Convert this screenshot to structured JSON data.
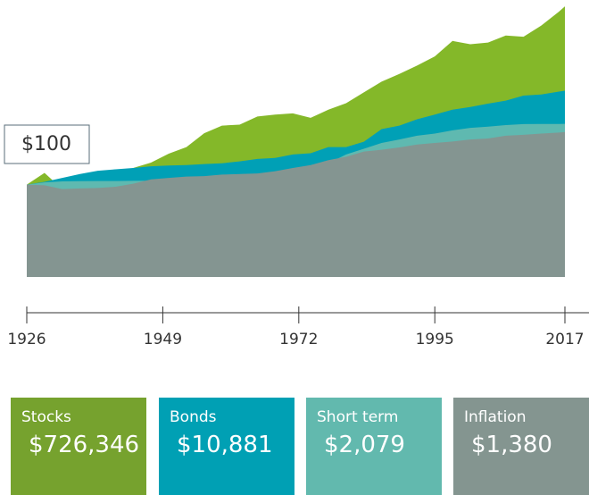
{
  "chart_data": {
    "type": "area",
    "annotation": "$100",
    "log_scale": true,
    "xlim": [
      1926,
      2017
    ],
    "xticks": [
      1926,
      1949,
      1972,
      1995,
      2017
    ],
    "ylim": [
      1,
      1000000
    ],
    "x": [
      1926,
      1929,
      1932,
      1935,
      1938,
      1941,
      1944,
      1947,
      1950,
      1953,
      1956,
      1959,
      1962,
      1965,
      1968,
      1971,
      1974,
      1977,
      1980,
      1983,
      1986,
      1989,
      1992,
      1995,
      1998,
      2001,
      2004,
      2007,
      2010,
      2013,
      2016,
      2017
    ],
    "series": [
      {
        "name": "Stocks",
        "color": "#84b829",
        "legend_color": "#76a22e",
        "values": [
          100,
          180,
          80,
          150,
          170,
          140,
          230,
          300,
          470,
          650,
          1300,
          1900,
          2000,
          3000,
          3300,
          3500,
          2800,
          4200,
          5800,
          10000,
          17000,
          25000,
          38000,
          60000,
          130000,
          110000,
          120000,
          170000,
          160000,
          280000,
          560000,
          726346
        ],
        "value_labels": [
          null,
          null,
          null,
          null,
          null,
          null,
          null,
          null,
          null,
          null,
          null,
          null,
          null,
          null,
          null,
          null,
          null,
          null,
          null,
          null,
          null,
          null,
          null,
          null,
          null,
          null,
          null,
          null,
          null,
          null,
          null,
          "$726,346"
        ]
      },
      {
        "name": "Bonds",
        "color": "#00a0b6",
        "legend_color": "#00a0b4",
        "values": [
          100,
          115,
          140,
          170,
          200,
          215,
          230,
          250,
          260,
          265,
          280,
          290,
          320,
          360,
          380,
          450,
          480,
          650,
          650,
          850,
          1600,
          1900,
          2600,
          3300,
          4200,
          4800,
          5700,
          6600,
          8500,
          9000,
          10400,
          10881
        ],
        "value_labels": [
          null,
          null,
          null,
          null,
          null,
          null,
          null,
          null,
          null,
          null,
          null,
          null,
          null,
          null,
          null,
          null,
          null,
          null,
          null,
          null,
          null,
          null,
          null,
          null,
          null,
          null,
          null,
          null,
          null,
          null,
          null,
          "$10,881"
        ]
      },
      {
        "name": "Short term",
        "color": "#5fb9b0",
        "legend_color": "#62b9ae",
        "values": [
          100,
          112,
          118,
          119,
          120,
          120,
          121,
          122,
          125,
          130,
          136,
          145,
          155,
          170,
          190,
          215,
          245,
          290,
          450,
          600,
          800,
          950,
          1150,
          1280,
          1500,
          1700,
          1800,
          1950,
          2050,
          2060,
          2065,
          2079
        ],
        "value_labels": [
          null,
          null,
          null,
          null,
          null,
          null,
          null,
          null,
          null,
          null,
          null,
          null,
          null,
          null,
          null,
          null,
          null,
          null,
          null,
          null,
          null,
          null,
          null,
          null,
          null,
          null,
          null,
          null,
          null,
          null,
          null,
          "$2,079"
        ]
      },
      {
        "name": "Inflation",
        "color": "#849591",
        "legend_color": "#849590",
        "values": [
          100,
          97,
          80,
          83,
          85,
          90,
          105,
          130,
          140,
          150,
          153,
          165,
          170,
          175,
          195,
          230,
          265,
          340,
          400,
          520,
          570,
          640,
          740,
          800,
          860,
          950,
          1000,
          1150,
          1200,
          1280,
          1345,
          1380
        ],
        "value_labels": [
          null,
          null,
          null,
          null,
          null,
          null,
          null,
          null,
          null,
          null,
          null,
          null,
          null,
          null,
          null,
          null,
          null,
          null,
          null,
          null,
          null,
          null,
          null,
          null,
          null,
          null,
          null,
          null,
          null,
          null,
          null,
          "$1,380"
        ]
      }
    ]
  }
}
